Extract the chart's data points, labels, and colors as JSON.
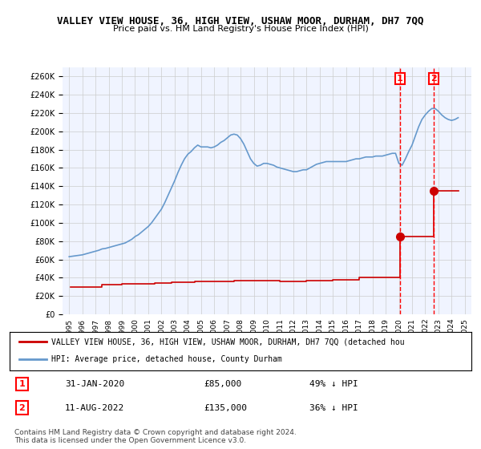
{
  "title": "VALLEY VIEW HOUSE, 36, HIGH VIEW, USHAW MOOR, DURHAM, DH7 7QQ",
  "subtitle": "Price paid vs. HM Land Registry's House Price Index (HPI)",
  "ylabel_ticks": [
    0,
    20000,
    40000,
    60000,
    80000,
    100000,
    120000,
    140000,
    160000,
    180000,
    200000,
    220000,
    240000,
    260000
  ],
  "ylim": [
    0,
    270000
  ],
  "background_color": "#f0f4ff",
  "plot_bg_color": "#f0f4ff",
  "grid_color": "#cccccc",
  "hpi_color": "#6699cc",
  "price_color": "#cc0000",
  "point1_year": 2020.08,
  "point1_price": 85000,
  "point1_label": "1",
  "point1_date": "31-JAN-2020",
  "point1_pct": "49% ↓ HPI",
  "point2_year": 2022.62,
  "point2_price": 135000,
  "point2_label": "2",
  "point2_date": "11-AUG-2022",
  "point2_pct": "36% ↓ HPI",
  "legend_line1": "VALLEY VIEW HOUSE, 36, HIGH VIEW, USHAW MOOR, DURHAM, DH7 7QQ (detached hou",
  "legend_line2": "HPI: Average price, detached house, County Durham",
  "footnote": "Contains HM Land Registry data © Crown copyright and database right 2024.\nThis data is licensed under the Open Government Licence v3.0.",
  "hpi_x": [
    1995,
    1995.25,
    1995.5,
    1995.75,
    1996,
    1996.25,
    1996.5,
    1996.75,
    1997,
    1997.25,
    1997.5,
    1997.75,
    1998,
    1998.25,
    1998.5,
    1998.75,
    1999,
    1999.25,
    1999.5,
    1999.75,
    2000,
    2000.25,
    2000.5,
    2000.75,
    2001,
    2001.25,
    2001.5,
    2001.75,
    2002,
    2002.25,
    2002.5,
    2002.75,
    2003,
    2003.25,
    2003.5,
    2003.75,
    2004,
    2004.25,
    2004.5,
    2004.75,
    2005,
    2005.25,
    2005.5,
    2005.75,
    2006,
    2006.25,
    2006.5,
    2006.75,
    2007,
    2007.25,
    2007.5,
    2007.75,
    2008,
    2008.25,
    2008.5,
    2008.75,
    2009,
    2009.25,
    2009.5,
    2009.75,
    2010,
    2010.25,
    2010.5,
    2010.75,
    2011,
    2011.25,
    2011.5,
    2011.75,
    2012,
    2012.25,
    2012.5,
    2012.75,
    2013,
    2013.25,
    2013.5,
    2013.75,
    2014,
    2014.25,
    2014.5,
    2014.75,
    2015,
    2015.25,
    2015.5,
    2015.75,
    2016,
    2016.25,
    2016.5,
    2016.75,
    2017,
    2017.25,
    2017.5,
    2017.75,
    2018,
    2018.25,
    2018.5,
    2018.75,
    2019,
    2019.25,
    2019.5,
    2019.75,
    2020,
    2020.25,
    2020.5,
    2020.75,
    2021,
    2021.25,
    2021.5,
    2021.75,
    2022,
    2022.25,
    2022.5,
    2022.75,
    2023,
    2023.25,
    2023.5,
    2023.75,
    2024,
    2024.25,
    2024.5
  ],
  "hpi_y": [
    63000,
    63500,
    64000,
    64500,
    65000,
    66000,
    67000,
    68000,
    69000,
    70000,
    71500,
    72000,
    73000,
    74000,
    75000,
    76000,
    77000,
    78000,
    80000,
    82000,
    85000,
    87000,
    90000,
    93000,
    96000,
    100000,
    105000,
    110000,
    115000,
    122000,
    130000,
    138000,
    146000,
    155000,
    163000,
    170000,
    175000,
    178000,
    182000,
    185000,
    183000,
    183000,
    183000,
    182000,
    183000,
    185000,
    188000,
    190000,
    193000,
    196000,
    197000,
    196000,
    192000,
    186000,
    178000,
    170000,
    165000,
    162000,
    163000,
    165000,
    165000,
    164000,
    163000,
    161000,
    160000,
    159000,
    158000,
    157000,
    156000,
    156000,
    157000,
    158000,
    158000,
    160000,
    162000,
    164000,
    165000,
    166000,
    167000,
    167000,
    167000,
    167000,
    167000,
    167000,
    167000,
    168000,
    169000,
    170000,
    170000,
    171000,
    172000,
    172000,
    172000,
    173000,
    173000,
    173000,
    174000,
    175000,
    176000,
    176000,
    165000,
    163000,
    170000,
    178000,
    185000,
    195000,
    205000,
    213000,
    218000,
    222000,
    225000,
    225000,
    222000,
    218000,
    215000,
    213000,
    212000,
    213000,
    215000
  ],
  "price_x": [
    1995.08,
    1997.5,
    1999.0,
    2001.5,
    2002.75,
    2004.5,
    2007.5,
    2009.0,
    2011.0,
    2013.0,
    2015.0,
    2017.0,
    2020.08,
    2022.62
  ],
  "price_y": [
    30000,
    32000,
    33500,
    34000,
    35000,
    36000,
    37000,
    36500,
    36000,
    37000,
    38000,
    40000,
    85000,
    135000
  ]
}
